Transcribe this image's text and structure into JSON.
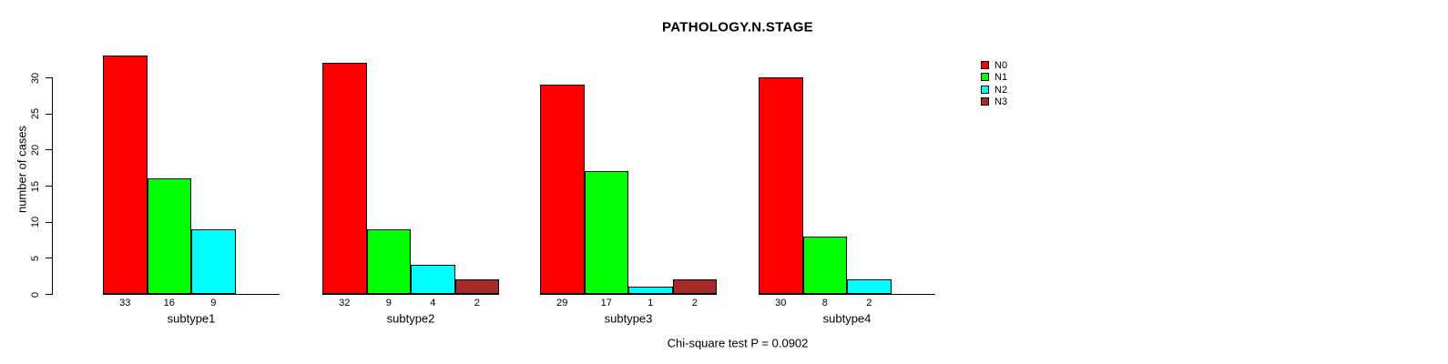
{
  "chart_data": {
    "type": "bar",
    "title": "PATHOLOGY.N.STAGE",
    "ylabel": "number of cases",
    "xlabel": "",
    "ylim": [
      0,
      33
    ],
    "yticks": [
      0,
      5,
      10,
      15,
      20,
      25,
      30
    ],
    "grid": false,
    "legend_position": "top-right",
    "categories": [
      "N0",
      "N1",
      "N2",
      "N3"
    ],
    "colors": [
      "#FF0000",
      "#00FF00",
      "#00FFFF",
      "#A52A2A"
    ],
    "groups": [
      {
        "label": "subtype1",
        "values": [
          33,
          16,
          9,
          0
        ]
      },
      {
        "label": "subtype2",
        "values": [
          32,
          9,
          4,
          2
        ]
      },
      {
        "label": "subtype3",
        "values": [
          29,
          17,
          1,
          2
        ]
      },
      {
        "label": "subtype4",
        "values": [
          30,
          8,
          2,
          0
        ]
      }
    ],
    "annotation": "Chi-square test P = 0.0902"
  },
  "legend": {
    "entries": [
      {
        "label": "N0",
        "color": "#FF0000"
      },
      {
        "label": "N1",
        "color": "#00FF00"
      },
      {
        "label": "N2",
        "color": "#00FFFF"
      },
      {
        "label": "N3",
        "color": "#A52A2A"
      }
    ]
  }
}
